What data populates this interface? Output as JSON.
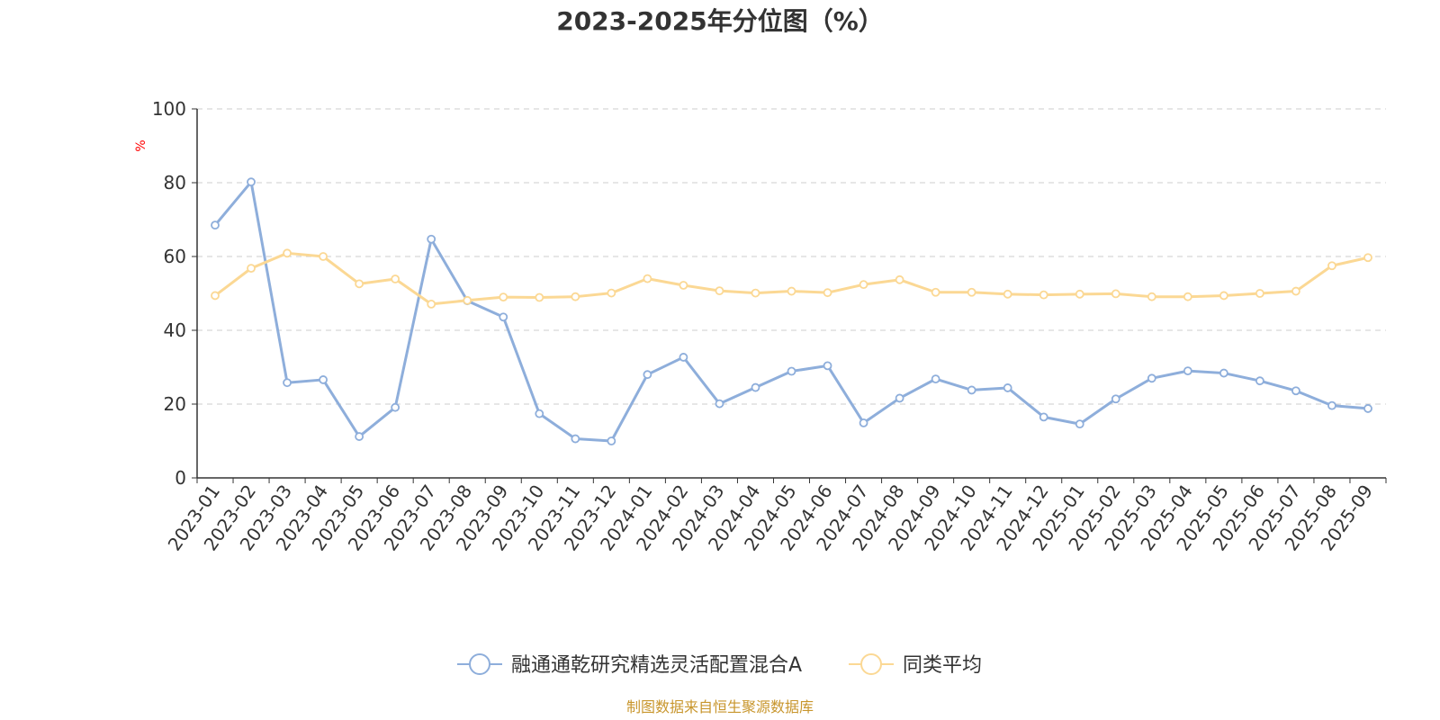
{
  "chart_data": {
    "type": "line",
    "title": "2023-2025年分位图（%）",
    "ylabel": "%",
    "xlabel": "",
    "ylim": [
      0,
      100
    ],
    "yticks": [
      0,
      20,
      40,
      60,
      80,
      100
    ],
    "grid": true,
    "legend_position": "bottom",
    "categories": [
      "2023-01",
      "2023-02",
      "2023-03",
      "2023-04",
      "2023-05",
      "2023-06",
      "2023-07",
      "2023-08",
      "2023-09",
      "2023-10",
      "2023-11",
      "2023-12",
      "2024-01",
      "2024-02",
      "2024-03",
      "2024-04",
      "2024-05",
      "2024-06",
      "2024-07",
      "2024-08",
      "2024-09",
      "2024-10",
      "2024-11",
      "2024-12",
      "2025-01",
      "2025-02",
      "2025-03",
      "2025-04",
      "2025-05",
      "2025-06",
      "2025-07",
      "2025-08",
      "2025-09"
    ],
    "series": [
      {
        "name": "融通通乾研究精选灵活配置混合A",
        "color": "#8eaedb",
        "values": [
          68.5,
          80.2,
          25.8,
          26.6,
          11.2,
          19.1,
          64.7,
          48.0,
          43.6,
          17.4,
          10.6,
          10.0,
          28.0,
          32.7,
          20.1,
          24.5,
          28.9,
          30.4,
          14.9,
          21.6,
          26.8,
          23.8,
          24.4,
          16.5,
          14.6,
          21.4,
          27.0,
          29.0,
          28.4,
          26.3,
          23.6,
          19.6,
          18.8
        ]
      },
      {
        "name": "同类平均",
        "color": "#fbd894",
        "values": [
          49.4,
          56.8,
          60.9,
          60.0,
          52.6,
          53.9,
          47.1,
          48.1,
          49.0,
          48.9,
          49.1,
          50.1,
          54.0,
          52.2,
          50.7,
          50.1,
          50.6,
          50.2,
          52.4,
          53.7,
          50.3,
          50.3,
          49.8,
          49.6,
          49.8,
          49.9,
          49.1,
          49.1,
          49.4,
          50.0,
          50.6,
          57.5,
          59.7
        ]
      }
    ]
  },
  "source": "制图数据来自恒生聚源数据库"
}
